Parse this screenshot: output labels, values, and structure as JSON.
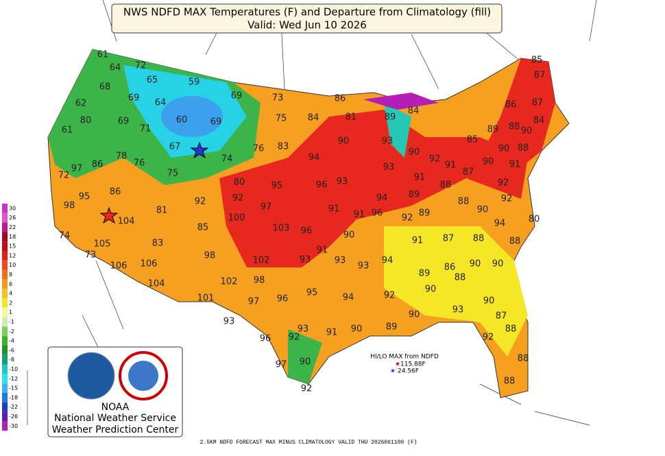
{
  "header": {
    "title": "NWS NDFD MAX Temperatures (F) and Departure from Climatology (fill)",
    "subtitle": "Valid: Wed Jun 10 2026"
  },
  "temperatures": [
    61,
    64,
    72,
    65,
    59,
    68,
    69,
    64,
    69,
    73,
    62,
    80,
    69,
    71,
    60,
    69,
    75,
    84,
    86,
    81,
    89,
    84,
    61,
    67,
    76,
    83,
    90,
    93,
    85,
    89,
    88,
    86,
    87,
    85,
    87,
    84,
    90,
    90,
    88,
    78,
    76,
    97,
    86,
    72,
    75,
    74,
    94,
    93,
    90,
    92,
    91,
    87,
    90,
    91,
    80,
    95,
    96,
    93,
    91,
    88,
    92,
    95,
    86,
    92,
    92,
    97,
    94,
    89,
    88,
    90,
    92,
    98,
    104,
    81,
    100,
    91,
    91,
    96,
    92,
    89,
    94,
    80,
    85,
    103,
    96,
    90,
    91,
    87,
    88,
    88,
    74,
    105,
    83,
    91,
    73,
    106,
    106,
    98,
    102,
    93,
    93,
    93,
    94,
    86,
    90,
    90,
    89,
    88,
    104,
    102,
    98,
    95,
    94,
    92,
    90,
    101,
    97,
    96,
    90,
    93,
    87,
    90,
    93,
    93,
    91,
    90,
    89,
    88,
    92,
    96,
    92,
    88,
    90,
    97,
    92,
    88
  ],
  "colorbar": {
    "ticks": [
      30,
      26,
      22,
      18,
      15,
      12,
      10,
      8,
      6,
      4,
      2,
      1,
      -1,
      -2,
      -4,
      -6,
      -8,
      -10,
      -12,
      -15,
      -18,
      -22,
      -26,
      -30
    ],
    "colors": [
      "#cc33cc",
      "#e055c8",
      "#c0188c",
      "#9e0a2a",
      "#c80a14",
      "#e61e14",
      "#f5461e",
      "#f56e14",
      "#f59b14",
      "#f5c31e",
      "#f5e628",
      "#fafa9b",
      "#c8f0b4",
      "#78d25a",
      "#3cb428",
      "#1e9628",
      "#14a078",
      "#1ec8c8",
      "#28e6f0",
      "#3cb4f5",
      "#1e78e6",
      "#1e3cc8",
      "#5a1eb4",
      "#b41eb4"
    ]
  },
  "hilo": {
    "title": "HI/LO MAX from NDFD",
    "hi": "115.88F",
    "lo": "24.56F"
  },
  "logo": {
    "agency": "NOAA",
    "line1": "National Weather Service",
    "line2": "Weather Prediction Center"
  },
  "footer": "2.5KM NDFD FORECAST MAX MINUS CLIMATOLOGY VALID THU 2026061100 (F)"
}
